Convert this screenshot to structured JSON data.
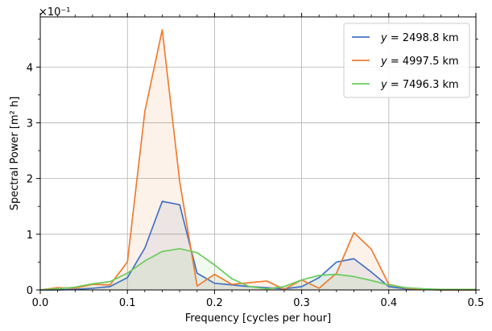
{
  "chart_data": {
    "type": "area",
    "xlabel": "Frequency [cycles per hour]",
    "ylabel": "Spectral Power [m² h]",
    "y_scale_label": "×10⁻¹",
    "xlim": [
      0.0,
      0.5
    ],
    "ylim": [
      0.0,
      4.9
    ],
    "x_ticks": [
      0.0,
      0.1,
      0.2,
      0.3,
      0.4,
      0.5
    ],
    "x_tick_labels": [
      "0.0",
      "0.1",
      "0.2",
      "0.3",
      "0.4",
      "0.5"
    ],
    "y_ticks": [
      0,
      1,
      2,
      3,
      4
    ],
    "y_tick_labels": [
      "0",
      "1",
      "2",
      "3",
      "4"
    ],
    "grid": true,
    "legend_position": "top-right",
    "x": [
      0.0,
      0.02,
      0.04,
      0.06,
      0.08,
      0.1,
      0.12,
      0.14,
      0.16,
      0.18,
      0.2,
      0.22,
      0.24,
      0.26,
      0.28,
      0.3,
      0.32,
      0.34,
      0.36,
      0.38,
      0.4,
      0.42,
      0.44,
      0.46,
      0.48,
      0.5
    ],
    "series": [
      {
        "name": "y = 2498.8 km",
        "legend_var": "y",
        "legend_value": " = 2498.8 km",
        "color": "#4472c4",
        "fill": "rgba(68,114,196,0.10)",
        "values": [
          0.0,
          0.0,
          0.01,
          0.03,
          0.06,
          0.22,
          0.75,
          1.59,
          1.53,
          0.3,
          0.12,
          0.09,
          0.06,
          0.04,
          0.02,
          0.06,
          0.22,
          0.5,
          0.56,
          0.32,
          0.06,
          0.02,
          0.01,
          0.0,
          0.0,
          0.0
        ]
      },
      {
        "name": "y = 4997.5 km",
        "legend_var": "y",
        "legend_value": " = 4997.5 km",
        "color": "#ed7d31",
        "fill": "rgba(237,125,49,0.10)",
        "values": [
          0.0,
          0.04,
          0.03,
          0.1,
          0.09,
          0.5,
          3.2,
          4.67,
          1.95,
          0.07,
          0.28,
          0.1,
          0.13,
          0.16,
          0.01,
          0.18,
          0.03,
          0.3,
          1.03,
          0.73,
          0.1,
          0.03,
          0.01,
          0.0,
          0.0,
          0.0
        ]
      },
      {
        "name": "y = 7496.3 km",
        "legend_var": "y",
        "legend_value": " = 7496.3 km",
        "color": "#6ccb5f",
        "fill": "rgba(108,203,95,0.10)",
        "values": [
          0.0,
          0.02,
          0.05,
          0.11,
          0.15,
          0.3,
          0.52,
          0.69,
          0.74,
          0.67,
          0.45,
          0.2,
          0.06,
          0.02,
          0.06,
          0.18,
          0.26,
          0.28,
          0.24,
          0.17,
          0.09,
          0.04,
          0.02,
          0.01,
          0.01,
          0.01
        ]
      }
    ]
  }
}
